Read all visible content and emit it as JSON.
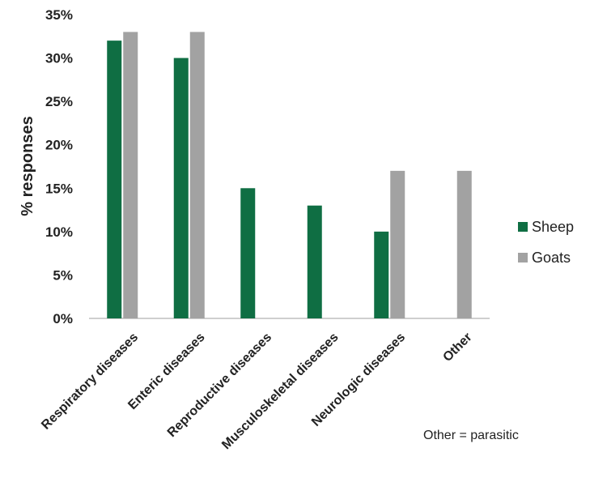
{
  "chart_data": {
    "type": "bar",
    "ylabel": "% responses",
    "ylim": [
      0,
      35
    ],
    "yticks": [
      "0%",
      "5%",
      "10%",
      "15%",
      "20%",
      "25%",
      "30%",
      "35%"
    ],
    "ytick_values": [
      0,
      5,
      10,
      15,
      20,
      25,
      30,
      35
    ],
    "categories": [
      "Respiratory diseases",
      "Enteric diseases",
      "Reproductive diseases",
      "Musculoskeletal diseases",
      "Neurologic diseases",
      "Other"
    ],
    "series": [
      {
        "name": "Sheep",
        "color": "#0f6e43",
        "values": [
          32,
          30,
          15,
          13,
          10,
          null
        ]
      },
      {
        "name": "Goats",
        "color": "#a2a2a2",
        "values": [
          33,
          33,
          null,
          null,
          17,
          17
        ]
      }
    ],
    "grid": false,
    "legend_position": "right",
    "annotation": "Other = parasitic"
  }
}
